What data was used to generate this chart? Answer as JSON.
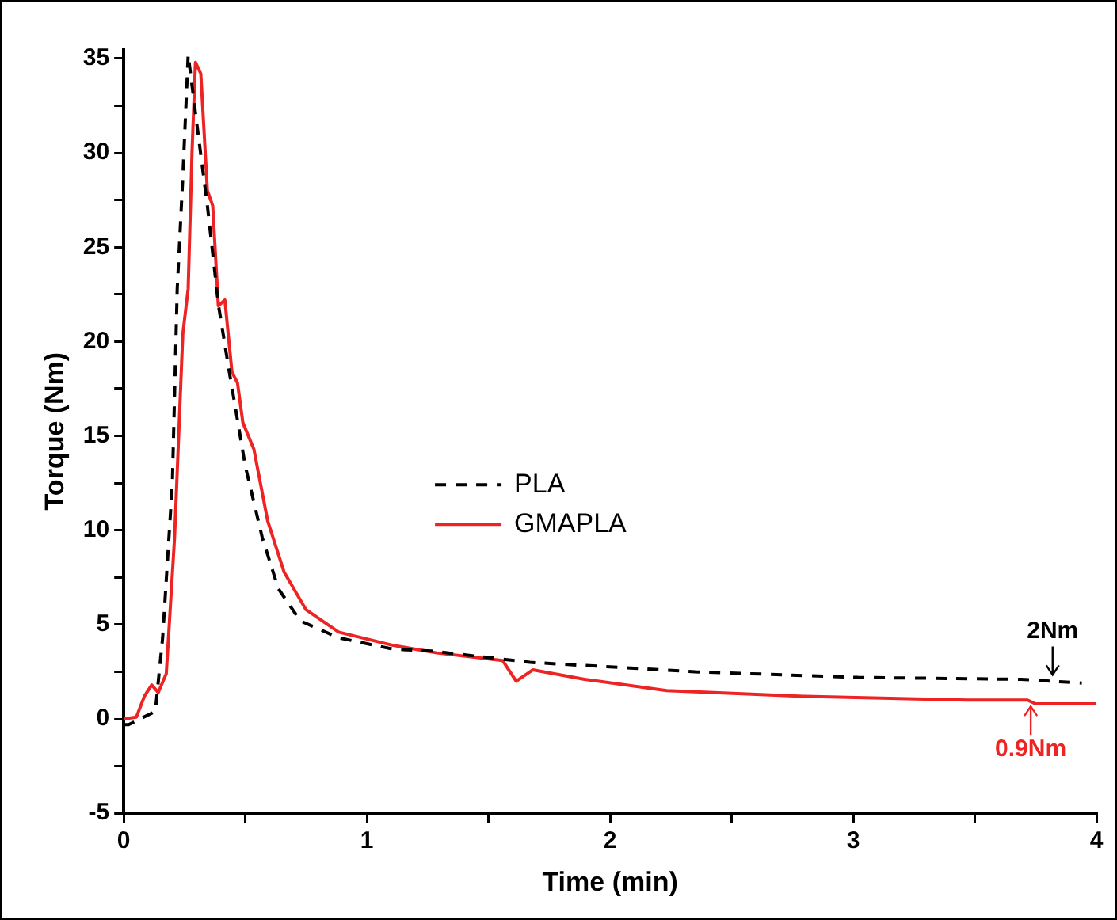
{
  "chart_data": {
    "type": "line",
    "xlabel": "Time (min)",
    "ylabel": "Torque (Nm)",
    "xlim": [
      0,
      4
    ],
    "xticks": [
      0,
      {
        "value": 0.5,
        "label": null
      },
      1,
      {
        "value": 1.5,
        "label": null
      },
      2,
      {
        "value": 2.5,
        "label": null
      },
      3,
      {
        "value": 3.5,
        "label": null
      },
      4
    ],
    "ylim": [
      -5,
      35.5
    ],
    "yticks": [
      -5,
      {
        "value": -2.5,
        "label": null
      },
      0,
      {
        "value": 2.5,
        "label": null
      },
      5,
      {
        "value": 7.5,
        "label": null
      },
      10,
      {
        "value": 12.5,
        "label": null
      },
      15,
      {
        "value": 17.5,
        "label": null
      },
      20,
      {
        "value": 22.5,
        "label": null
      },
      25,
      {
        "value": 27.5,
        "label": null
      },
      30,
      {
        "value": 32.5,
        "label": null
      },
      35
    ],
    "grid": false,
    "legend": "center",
    "marker": "none",
    "series": [
      {
        "name": "PLA",
        "color": "#000000",
        "line_style": "dashed",
        "x": [
          0,
          0.02,
          0.13,
          0.16,
          0.2,
          0.22,
          0.243,
          0.265,
          0.3,
          0.344,
          0.39,
          0.434,
          0.5,
          0.57,
          0.636,
          0.726,
          0.884,
          1.108,
          1.266,
          1.67,
          2.35,
          3.02,
          3.69,
          3.82,
          3.94
        ],
        "values": [
          -0.3,
          -0.3,
          0.4,
          4.3,
          12.5,
          22.8,
          28.7,
          35.2,
          31.6,
          27.2,
          21.9,
          18.4,
          13.4,
          9.6,
          6.9,
          5.2,
          4.3,
          3.7,
          3.6,
          3.0,
          2.5,
          2.2,
          2.1,
          2.0,
          1.9
        ]
      },
      {
        "name": "GMAPLA",
        "color": "#ee2424",
        "line_style": "solid",
        "x": [
          0,
          0.052,
          0.085,
          0.115,
          0.142,
          0.175,
          0.209,
          0.243,
          0.265,
          0.281,
          0.295,
          0.317,
          0.344,
          0.366,
          0.389,
          0.416,
          0.445,
          0.468,
          0.49,
          0.535,
          0.592,
          0.659,
          0.749,
          0.884,
          1.108,
          1.288,
          1.558,
          1.614,
          1.682,
          1.895,
          2.233,
          2.795,
          3.47,
          3.717,
          3.75,
          4.0
        ],
        "values": [
          0,
          0.1,
          1.2,
          1.8,
          1.4,
          2.4,
          9.6,
          20.4,
          22.8,
          30.1,
          34.8,
          34.2,
          28,
          27.2,
          21.9,
          22.2,
          18.4,
          17.8,
          15.7,
          14.3,
          10.5,
          7.8,
          5.8,
          4.6,
          3.9,
          3.5,
          3.1,
          2.0,
          2.6,
          2.1,
          1.5,
          1.2,
          1.0,
          1.0,
          0.8,
          0.8
        ]
      }
    ],
    "annotations": [
      {
        "text": "2Nm",
        "x": 3.82,
        "y": 2.0
      },
      {
        "text": "0.9Nm",
        "x": 3.73,
        "y": 1.0
      }
    ]
  }
}
